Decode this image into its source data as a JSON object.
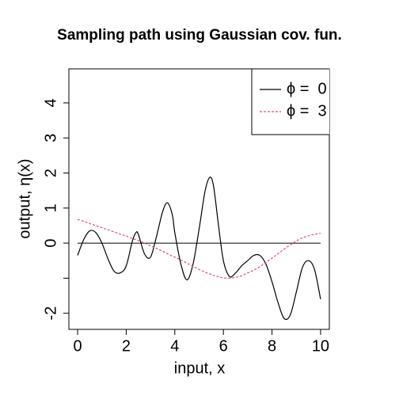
{
  "chart_data": {
    "type": "line",
    "title": "Sampling path using Gaussian cov. fun.",
    "x_label": "input, x",
    "y_label": "output, η(x)",
    "x": [
      0,
      0.25,
      0.5,
      0.75,
      1,
      1.25,
      1.5,
      1.75,
      2,
      2.25,
      2.4,
      2.5,
      2.75,
      3,
      3.25,
      3.5,
      3.7,
      3.9,
      4,
      4.25,
      4.5,
      4.75,
      5,
      5.25,
      5.45,
      5.6,
      5.8,
      6,
      6.25,
      6.5,
      6.75,
      7,
      7.25,
      7.5,
      7.75,
      8,
      8.25,
      8.5,
      8.75,
      9,
      9.25,
      9.5,
      9.75,
      10
    ],
    "series": [
      {
        "name": "ϕ =  0",
        "color": "#000000",
        "dash": false,
        "values": [
          -0.35,
          0.1,
          0.35,
          0.3,
          0,
          -0.45,
          -0.8,
          -0.85,
          -0.65,
          0.05,
          0.3,
          0.25,
          -0.3,
          -0.4,
          0.2,
          0.9,
          1.15,
          0.8,
          0.3,
          -0.6,
          -1.05,
          -0.6,
          0.4,
          1.5,
          1.88,
          1.6,
          0.5,
          -0.5,
          -0.95,
          -0.85,
          -0.65,
          -0.5,
          -0.35,
          -0.35,
          -0.6,
          -1.1,
          -1.7,
          -2.15,
          -2.05,
          -1.4,
          -0.7,
          -0.5,
          -0.75,
          -1.6
        ]
      },
      {
        "name": "ϕ =  3",
        "color": "#DF536B",
        "dash": true,
        "values": [
          0.68,
          0.62,
          0.56,
          0.5,
          0.44,
          0.38,
          0.32,
          0.26,
          0.2,
          0.13,
          0.1,
          0.07,
          0.0,
          -0.08,
          -0.15,
          -0.23,
          -0.3,
          -0.37,
          -0.4,
          -0.48,
          -0.57,
          -0.66,
          -0.75,
          -0.83,
          -0.88,
          -0.92,
          -0.96,
          -0.99,
          -1.0,
          -0.98,
          -0.93,
          -0.85,
          -0.77,
          -0.67,
          -0.55,
          -0.43,
          -0.3,
          -0.17,
          -0.05,
          0.06,
          0.15,
          0.21,
          0.25,
          0.28
        ]
      }
    ],
    "reference_line": 0,
    "xlim": [
      -0.36,
      10.36
    ],
    "xticks": [
      0,
      2,
      4,
      6,
      8,
      10
    ],
    "ylim": [
      -2.46,
      4.97
    ],
    "yticks": [
      -2,
      {
        "value": -1,
        "label": null
      },
      0,
      1,
      2,
      3,
      4
    ],
    "legend": "top-right",
    "grid": false
  }
}
